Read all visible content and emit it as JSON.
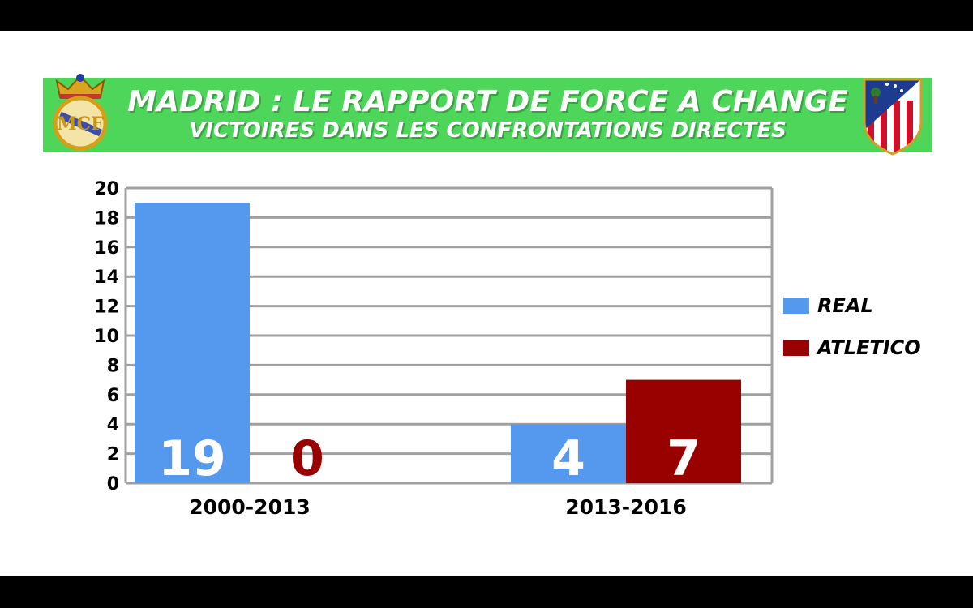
{
  "banner": {
    "title": "MADRID : LE RAPPORT DE FORCE A CHANGE",
    "subtitle": "VICTOIRES DANS LES CONFRONTATIONS DIRECTES",
    "background": "#4dd65a"
  },
  "chart_data": {
    "type": "bar",
    "title": "MADRID : LE RAPPORT DE FORCE A CHANGE",
    "subtitle": "VICTOIRES DANS LES CONFRONTATIONS DIRECTES",
    "categories": [
      "2000-2013",
      "2013-2016"
    ],
    "series": [
      {
        "name": "REAL",
        "values": [
          19,
          4
        ],
        "color": "#5599ee",
        "label_color": "#ffffff"
      },
      {
        "name": "ATLETICO",
        "values": [
          0,
          7
        ],
        "color": "#990000",
        "label_color": "#ffffff"
      }
    ],
    "zero_label_color": "#990000",
    "ylim": [
      0,
      20
    ],
    "yticks": [
      0,
      2,
      4,
      6,
      8,
      10,
      12,
      14,
      16,
      18,
      20
    ],
    "grid": true,
    "legend": "right",
    "xlabel": "",
    "ylabel": ""
  }
}
